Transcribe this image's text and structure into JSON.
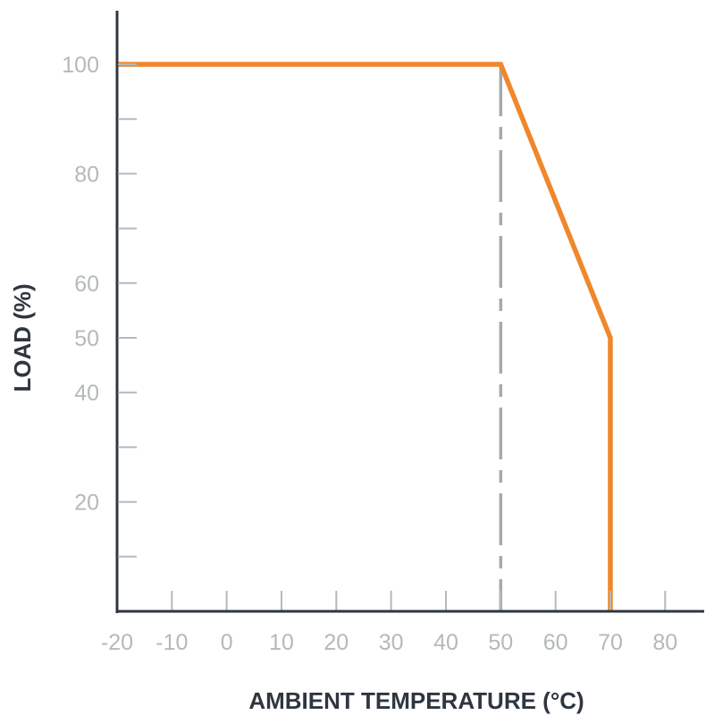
{
  "chart_data": {
    "type": "line",
    "title": "",
    "xlabel": "AMBIENT TEMPERATURE (°C)",
    "ylabel": "LOAD (%)",
    "xlim": [
      -20,
      87
    ],
    "ylim": [
      0,
      110
    ],
    "x_ticks": [
      -20,
      -10,
      0,
      10,
      20,
      30,
      40,
      50,
      60,
      70,
      80
    ],
    "x_tick_labels": [
      "-20",
      "-10",
      "0",
      "10",
      "20",
      "30",
      "40",
      "50",
      "60",
      "70",
      "80"
    ],
    "y_ticks": [
      10,
      20,
      30,
      40,
      50,
      60,
      70,
      80,
      90,
      100
    ],
    "y_tick_labels": [
      "",
      "20",
      "",
      "40",
      "50",
      "60",
      "",
      "80",
      "",
      "100"
    ],
    "grid": false,
    "series": [
      {
        "x": [
          -20,
          50,
          70,
          70
        ],
        "y": [
          100,
          100,
          50,
          0
        ],
        "color": "#f0872b"
      }
    ],
    "reference_lines": [
      {
        "orientation": "vertical",
        "x": 50,
        "style": "dash-dot",
        "color": "#a4aaad"
      }
    ],
    "colors": {
      "axis": "#2f3640",
      "tick": "#b4b9bc",
      "curve": "#f0872b",
      "reference": "#a4aaad"
    }
  }
}
